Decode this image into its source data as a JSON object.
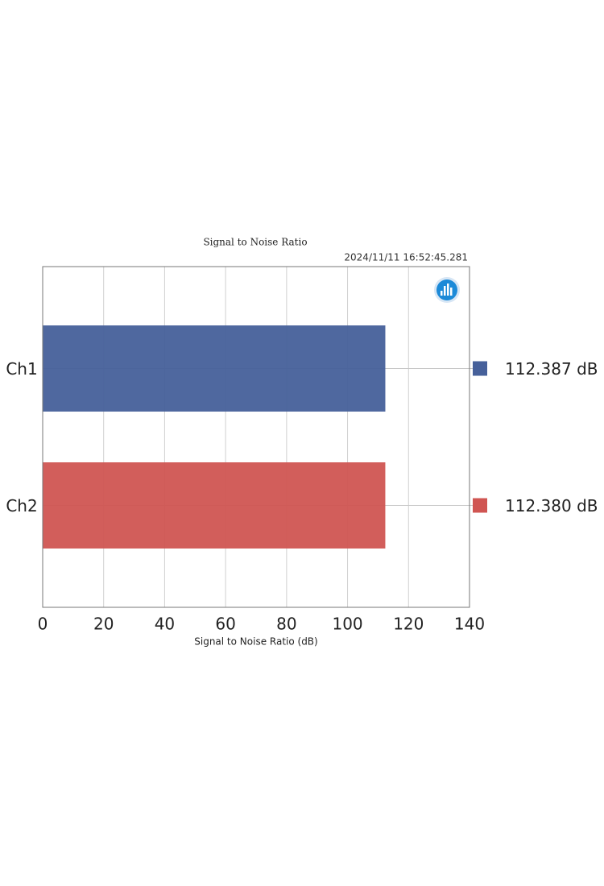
{
  "chart_data": {
    "type": "bar",
    "orientation": "horizontal",
    "title": "Signal to Noise Ratio",
    "timestamp": "2024/11/11 16:52:45.281",
    "x_label": "Signal to Noise Ratio (dB)",
    "categories": [
      "Ch1",
      "Ch2"
    ],
    "values": [
      112.387,
      112.38
    ],
    "value_labels": [
      "112.387 dB",
      "112.380 dB"
    ],
    "colors": [
      "#46609a",
      "#d05552"
    ],
    "xlim": [
      0,
      140
    ],
    "xticks": [
      0,
      20,
      40,
      60,
      80,
      100,
      120,
      140
    ],
    "grid": true
  }
}
